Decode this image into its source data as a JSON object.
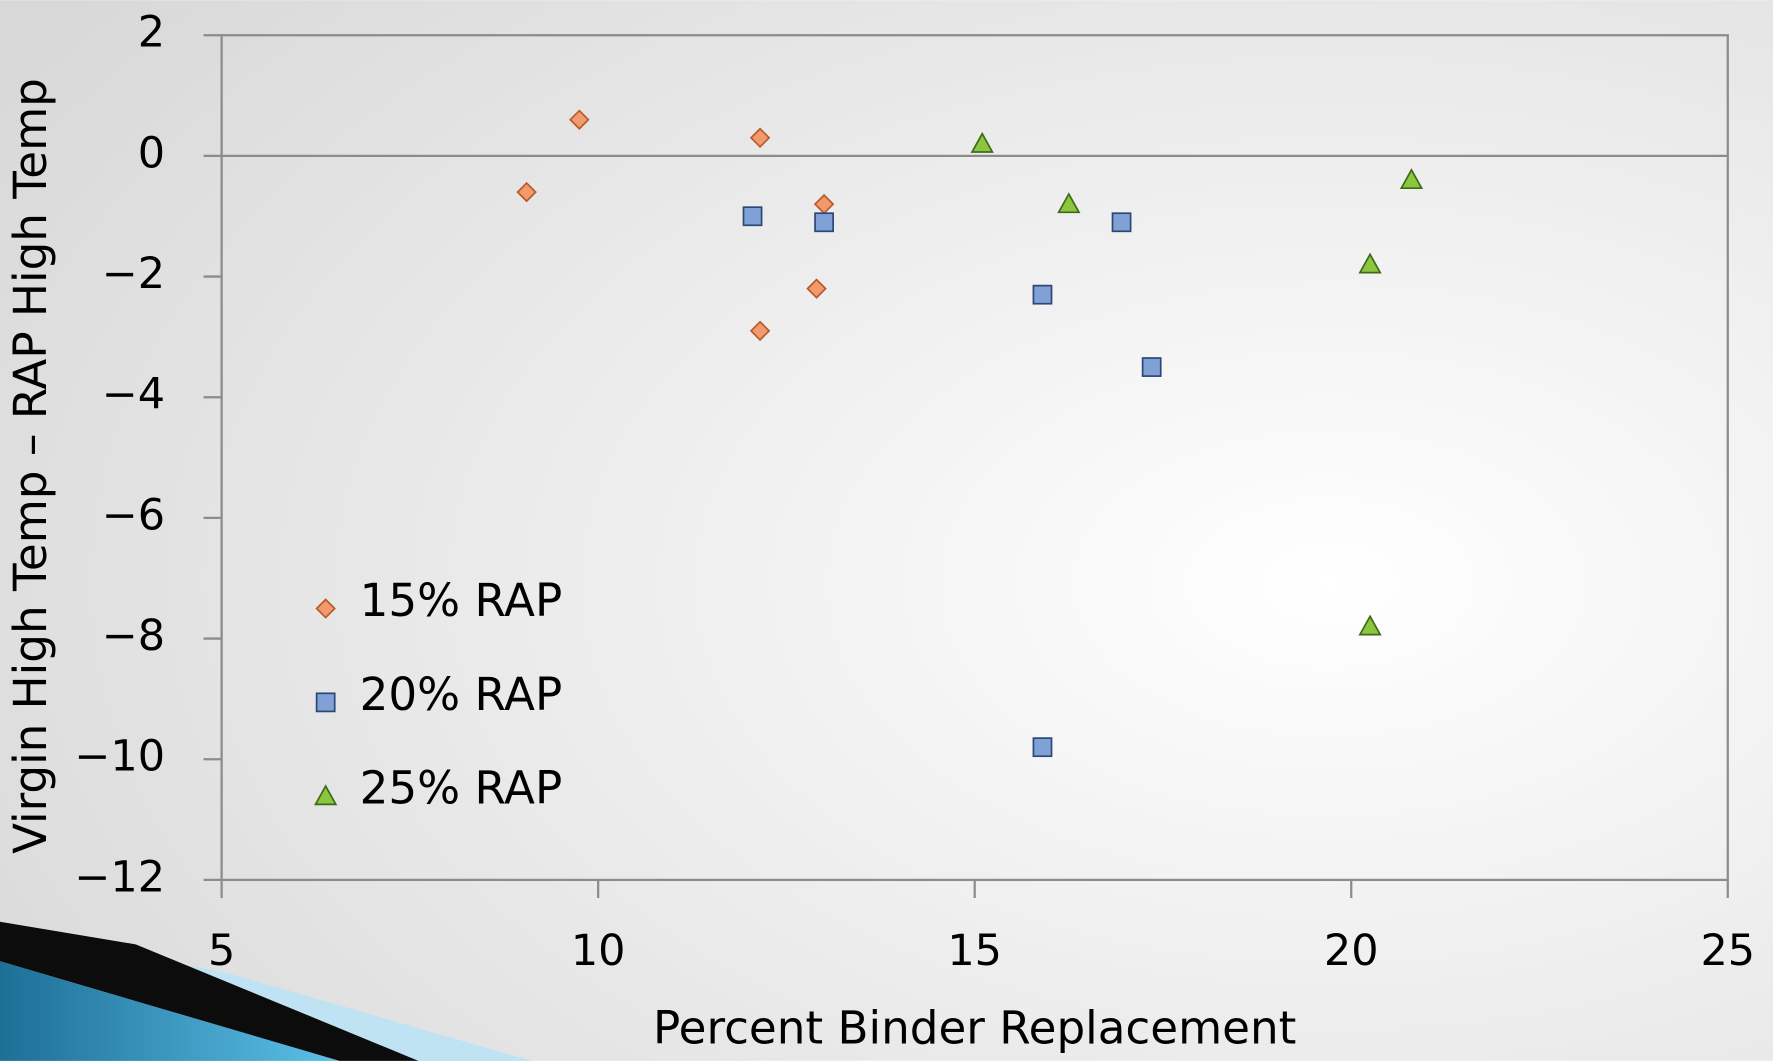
{
  "chart_data": {
    "type": "scatter",
    "xlabel": "Percent Binder Replacement",
    "ylabel": "Virgin  High Temp – RAP High Temp",
    "xlim": [
      5,
      25
    ],
    "ylim": [
      -12,
      2
    ],
    "xticks": [
      5,
      10,
      15,
      20,
      25
    ],
    "yticks": [
      {
        "value": -12,
        "label": "−12"
      },
      {
        "value": -10,
        "label": "−10"
      },
      {
        "value": -8,
        "label": "−8"
      },
      {
        "value": -6,
        "label": "−6"
      },
      {
        "value": -4,
        "label": "−4"
      },
      {
        "value": -2,
        "label": "−2"
      },
      0,
      2
    ],
    "reference_line": 0,
    "grid": false,
    "legend_position": "lower left",
    "series": [
      {
        "name": "15% RAP",
        "marker": "diamond",
        "color": "#f29a6e",
        "edgecolor": "#b85a2a",
        "x": [
          9.05,
          9.75,
          12.15,
          13.0,
          12.9,
          12.15
        ],
        "values": [
          -0.6,
          0.6,
          0.3,
          -0.8,
          -2.2,
          -2.9
        ]
      },
      {
        "name": "20% RAP",
        "marker": "square",
        "color": "#7fa1d6",
        "edgecolor": "#2c4775",
        "x": [
          12.05,
          13.0,
          15.9,
          16.95,
          17.35,
          15.9
        ],
        "values": [
          -1.0,
          -1.1,
          -2.3,
          -1.1,
          -3.5,
          -9.8
        ]
      },
      {
        "name": "25% RAP",
        "marker": "triangle",
        "color": "#8cc63f",
        "edgecolor": "#3c6a17",
        "x": [
          15.1,
          16.25,
          20.25,
          20.8,
          20.25
        ],
        "values": [
          0.2,
          -0.8,
          -1.8,
          -0.4,
          -7.8
        ]
      }
    ]
  }
}
